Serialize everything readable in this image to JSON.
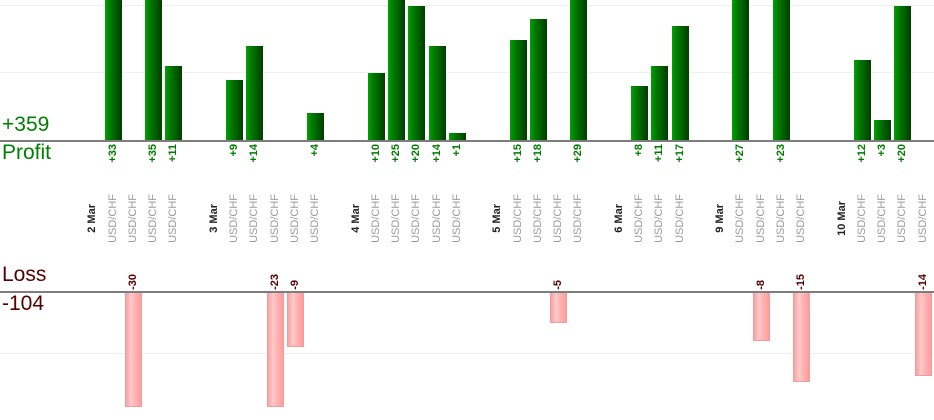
{
  "chart_data": {
    "type": "bar",
    "title": "",
    "description": "Dual-panel trade result chart: green profit bars above shared x-axis labels, pink loss bars below; one bar per trade, trades grouped by date",
    "axis_titles": {
      "profit": "Profit",
      "loss": "Loss"
    },
    "totals": {
      "profit": 359,
      "loss": -104,
      "profit_label": "+359",
      "loss_label": "-104"
    },
    "profit_gridlines": [
      10,
      20
    ],
    "loss_gridlines": [
      -10
    ],
    "profit_axis_visible_max": 20,
    "loss_axis_visible_min": -19,
    "groups": [
      {
        "date": "2 Mar",
        "trades": [
          {
            "symbol": "USD/CHF",
            "value": 33,
            "label": "+33"
          },
          {
            "symbol": "USD/CHF",
            "value": -30,
            "label": "-30"
          },
          {
            "symbol": "USD/CHF",
            "value": 35,
            "label": "+35"
          },
          {
            "symbol": "USD/CHF",
            "value": 11,
            "label": "+11"
          }
        ]
      },
      {
        "date": "3 Mar",
        "trades": [
          {
            "symbol": "USD/CHF",
            "value": 9,
            "label": "+9"
          },
          {
            "symbol": "USD/CHF",
            "value": 14,
            "label": "+14"
          },
          {
            "symbol": "USD/CHF",
            "value": -23,
            "label": "-23"
          },
          {
            "symbol": "USD/CHF",
            "value": -9,
            "label": "-9"
          },
          {
            "symbol": "USD/CHF",
            "value": 4,
            "label": "+4"
          }
        ]
      },
      {
        "date": "4 Mar",
        "trades": [
          {
            "symbol": "USD/CHF",
            "value": 10,
            "label": "+10"
          },
          {
            "symbol": "USD/CHF",
            "value": 25,
            "label": "+25"
          },
          {
            "symbol": "USD/CHF",
            "value": 20,
            "label": "+20"
          },
          {
            "symbol": "USD/CHF",
            "value": 14,
            "label": "+14"
          },
          {
            "symbol": "USD/CHF",
            "value": 1,
            "label": "+1"
          }
        ]
      },
      {
        "date": "5 Mar",
        "trades": [
          {
            "symbol": "USD/CHF",
            "value": 15,
            "label": "+15"
          },
          {
            "symbol": "USD/CHF",
            "value": 18,
            "label": "+18"
          },
          {
            "symbol": "USD/CHF",
            "value": -5,
            "label": "-5"
          },
          {
            "symbol": "USD/CHF",
            "value": 29,
            "label": "+29"
          }
        ]
      },
      {
        "date": "6 Mar",
        "trades": [
          {
            "symbol": "USD/CHF",
            "value": 8,
            "label": "+8"
          },
          {
            "symbol": "USD/CHF",
            "value": 11,
            "label": "+11"
          },
          {
            "symbol": "USD/CHF",
            "value": 17,
            "label": "+17"
          }
        ]
      },
      {
        "date": "9 Mar",
        "trades": [
          {
            "symbol": "USD/CHF",
            "value": 27,
            "label": "+27"
          },
          {
            "symbol": "USD/CHF",
            "value": -8,
            "label": "-8"
          },
          {
            "symbol": "USD/CHF",
            "value": 23,
            "label": "+23"
          },
          {
            "symbol": "USD/CHF",
            "value": -15,
            "label": "-15"
          }
        ]
      },
      {
        "date": "10 Mar",
        "trades": [
          {
            "symbol": "USD/CHF",
            "value": 12,
            "label": "+12"
          },
          {
            "symbol": "USD/CHF",
            "value": 3,
            "label": "+3"
          },
          {
            "symbol": "USD/CHF",
            "value": 20,
            "label": "+20"
          },
          {
            "symbol": "USD/CHF",
            "value": -14,
            "label": "-14"
          }
        ]
      }
    ]
  },
  "colors": {
    "profit_text": "#008000",
    "loss_text": "#550000",
    "date_text": "#222222",
    "symbol_text": "#9b9b9b",
    "axis_line": "#7d7d7d",
    "gridline": "#f0f0f0",
    "profit_bar_light": "#00a104",
    "profit_bar_dark": "#003d00",
    "loss_bar_light": "#ffc9c9",
    "loss_bar_dark": "#ff9c9c"
  }
}
